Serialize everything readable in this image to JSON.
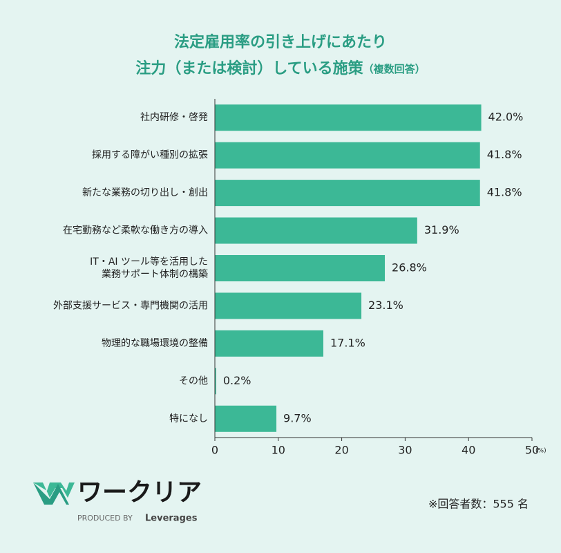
{
  "chart_data": {
    "type": "hbar",
    "title": [
      "法定雇用率の引き上げにあたり",
      "注力（または検討）している施策"
    ],
    "subtitle": "（複数回答）",
    "categories": [
      "社内研修・啓発",
      "採用する障がい種別の拡張",
      "新たな業務の切り出し・創出",
      "在宅勤務など柔軟な働き方の導入",
      "IT・AI ツール等を活用した\n業務サポート体制の構築",
      "外部支援サービス・専門機関の活用",
      "物理的な職場環境の整備",
      "その他",
      "特になし"
    ],
    "values": [
      42.0,
      41.8,
      41.8,
      31.9,
      26.8,
      23.1,
      17.1,
      0.2,
      9.7
    ],
    "value_labels": [
      "42.0%",
      "41.8%",
      "41.8%",
      "31.9%",
      "26.8%",
      "23.1%",
      "17.1%",
      "0.2%",
      "9.7%"
    ],
    "color": "#3cb896",
    "xlim": [
      0,
      50
    ],
    "xticks": [
      0,
      10,
      20,
      30,
      40,
      50
    ],
    "x_unit": "(%)",
    "footnote": "※回答者数：555 名"
  },
  "branding": {
    "logo": "ワークリア",
    "produced_by": "PRODUCED BY",
    "company": "Leverages"
  }
}
